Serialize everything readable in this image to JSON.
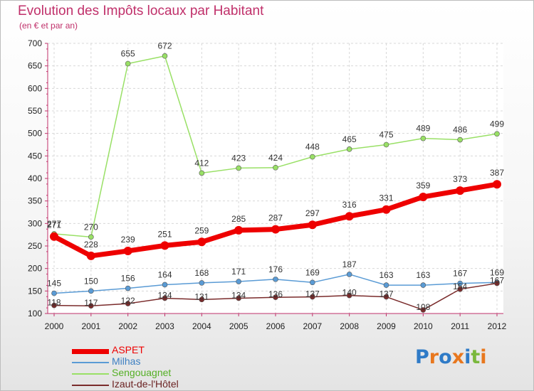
{
  "chart_data": {
    "type": "line",
    "title": "Evolution des Impôts locaux par Habitant",
    "subtitle": "(en € et par an)",
    "xlabel": "",
    "ylabel": "",
    "x": [
      "2000",
      "2001",
      "2002",
      "2003",
      "2004",
      "2005",
      "2006",
      "2007",
      "2008",
      "2009",
      "2010",
      "2011",
      "2012"
    ],
    "ylim": [
      100,
      700
    ],
    "yticks": [
      "100",
      "150",
      "200",
      "250",
      "300",
      "350",
      "400",
      "450",
      "500",
      "550",
      "600",
      "650",
      "700"
    ],
    "grid": true,
    "series": [
      {
        "name": "ASPET",
        "color": "#ee0000",
        "values": [
          271,
          228,
          239,
          251,
          259,
          285,
          287,
          297,
          316,
          331,
          359,
          373,
          387
        ]
      },
      {
        "name": "Milhas",
        "color": "#5a9bd5",
        "values": [
          145,
          150,
          156,
          164,
          168,
          171,
          176,
          169,
          187,
          163,
          163,
          167,
          169
        ]
      },
      {
        "name": "Sengouagnet",
        "color": "#99e066",
        "values": [
          277,
          270,
          655,
          672,
          412,
          423,
          424,
          448,
          465,
          475,
          489,
          486,
          499
        ]
      },
      {
        "name": "Izaut-de-l'Hôtel",
        "color": "#7a2b2b",
        "values": [
          118,
          117,
          122,
          134,
          131,
          134,
          136,
          137,
          140,
          137,
          108,
          154,
          167
        ]
      }
    ],
    "legend_position": "bottom-left"
  },
  "logo": {
    "text": "Proxiti",
    "letters": [
      "P",
      "r",
      "o",
      "x",
      "i",
      "t",
      "i"
    ],
    "colors": [
      "#2f7bc7",
      "#e8771e",
      "#2f7bc7",
      "#e8771e",
      "#2f7bc7",
      "#7ab83c",
      "#e8771e"
    ]
  }
}
